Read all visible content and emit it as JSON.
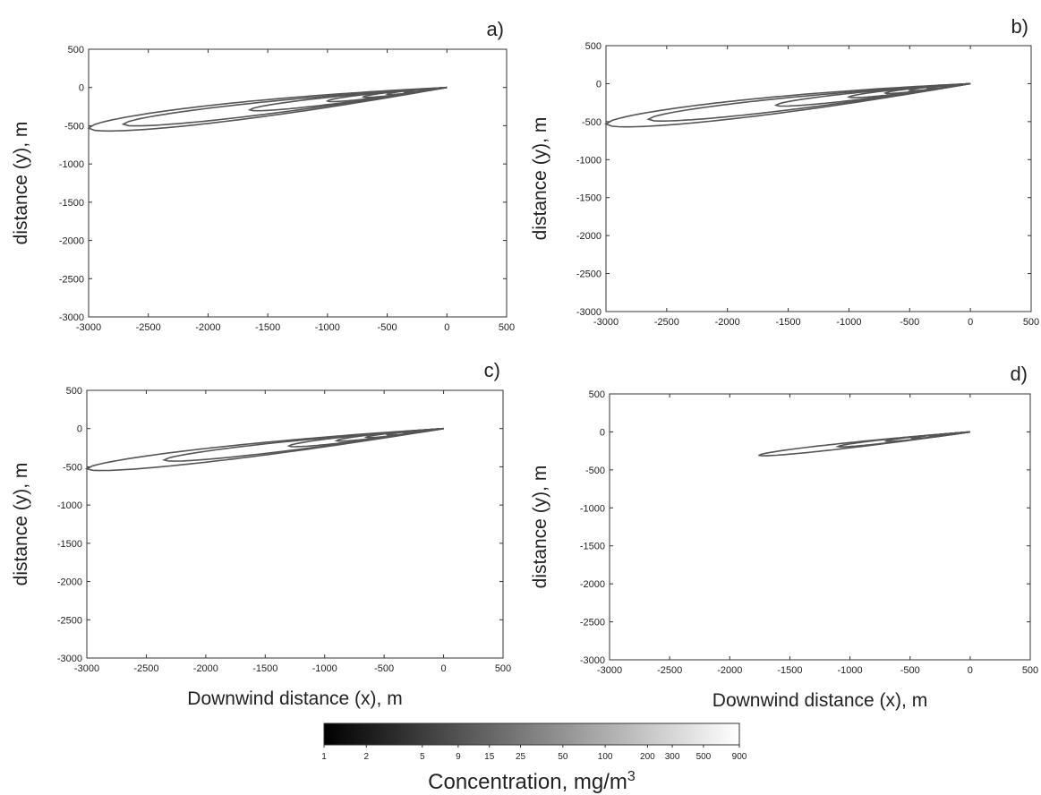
{
  "chart_data": [
    {
      "type": "contour",
      "panel_label": "a)",
      "ylabel": "distance (y), m",
      "xlabel": "",
      "xlim": [
        -3000,
        500
      ],
      "ylim": [
        -3000,
        500
      ],
      "xticks": [
        -3000,
        -2500,
        -2000,
        -1500,
        -1000,
        -500,
        0,
        500
      ],
      "yticks": [
        500,
        0,
        -500,
        -1000,
        -1500,
        -2000,
        -2500,
        -3000
      ],
      "contours": [
        {
          "tip_x": -3000,
          "axis_slope": 0.177,
          "half_width": 195
        },
        {
          "tip_x": -2710,
          "axis_slope": 0.177,
          "half_width": 140
        },
        {
          "tip_x": -1650,
          "axis_slope": 0.177,
          "half_width": 80
        },
        {
          "tip_x": -1000,
          "axis_slope": 0.177,
          "half_width": 50
        },
        {
          "tip_x": -700,
          "axis_slope": 0.177,
          "half_width": 35
        },
        {
          "tip_x": -500,
          "axis_slope": 0.177,
          "half_width": 26
        },
        {
          "tip_x": -350,
          "axis_slope": 0.177,
          "half_width": 18
        },
        {
          "tip_x": -230,
          "axis_slope": 0.177,
          "half_width": 12
        }
      ]
    },
    {
      "type": "contour",
      "panel_label": "b)",
      "ylabel": "distance (y), m",
      "xlabel": "",
      "xlim": [
        -3000,
        500
      ],
      "ylim": [
        -3000,
        500
      ],
      "xticks": [
        -3000,
        -2500,
        -2000,
        -1500,
        -1000,
        -500,
        0,
        500
      ],
      "yticks": [
        500,
        0,
        -500,
        -1000,
        -1500,
        -2000,
        -2500,
        -3000
      ],
      "contours": [
        {
          "tip_x": -3000,
          "axis_slope": 0.177,
          "half_width": 195
        },
        {
          "tip_x": -2650,
          "axis_slope": 0.177,
          "half_width": 140
        },
        {
          "tip_x": -1600,
          "axis_slope": 0.177,
          "half_width": 80
        },
        {
          "tip_x": -1000,
          "axis_slope": 0.177,
          "half_width": 50
        },
        {
          "tip_x": -700,
          "axis_slope": 0.177,
          "half_width": 35
        },
        {
          "tip_x": -500,
          "axis_slope": 0.177,
          "half_width": 26
        },
        {
          "tip_x": -350,
          "axis_slope": 0.177,
          "half_width": 18
        },
        {
          "tip_x": -230,
          "axis_slope": 0.177,
          "half_width": 12
        }
      ]
    },
    {
      "type": "contour",
      "panel_label": "c)",
      "ylabel": "distance (y), m",
      "xlabel": "Downwind distance (x), m",
      "xlim": [
        -3000,
        500
      ],
      "ylim": [
        -3000,
        500
      ],
      "xticks": [
        -3000,
        -2500,
        -2000,
        -1500,
        -1000,
        -500,
        0,
        500
      ],
      "yticks": [
        500,
        0,
        -500,
        -1000,
        -1500,
        -2000,
        -2500,
        -3000
      ],
      "contours": [
        {
          "tip_x": -3000,
          "axis_slope": 0.175,
          "half_width": 150
        },
        {
          "tip_x": -2350,
          "axis_slope": 0.175,
          "half_width": 105
        },
        {
          "tip_x": -1300,
          "axis_slope": 0.175,
          "half_width": 62
        },
        {
          "tip_x": -900,
          "axis_slope": 0.175,
          "half_width": 42
        },
        {
          "tip_x": -650,
          "axis_slope": 0.175,
          "half_width": 30
        },
        {
          "tip_x": -470,
          "axis_slope": 0.175,
          "half_width": 22
        },
        {
          "tip_x": -330,
          "axis_slope": 0.175,
          "half_width": 15
        },
        {
          "tip_x": -220,
          "axis_slope": 0.175,
          "half_width": 10
        }
      ]
    },
    {
      "type": "contour",
      "panel_label": "d)",
      "ylabel": "distance (y), m",
      "xlabel": "Downwind distance (x), m",
      "xlim": [
        -3000,
        500
      ],
      "ylim": [
        -3000,
        500
      ],
      "xticks": [
        -3000,
        -2500,
        -2000,
        -1500,
        -1000,
        -500,
        0,
        500
      ],
      "yticks": [
        500,
        0,
        -500,
        -1000,
        -1500,
        -2000,
        -2500,
        -3000
      ],
      "contours": [
        {
          "tip_x": -1760,
          "axis_slope": 0.175,
          "half_width": 60
        },
        {
          "tip_x": -1100,
          "axis_slope": 0.175,
          "half_width": 40
        },
        {
          "tip_x": -700,
          "axis_slope": 0.175,
          "half_width": 28
        },
        {
          "tip_x": -480,
          "axis_slope": 0.175,
          "half_width": 20
        },
        {
          "tip_x": -330,
          "axis_slope": 0.175,
          "half_width": 14
        },
        {
          "tip_x": -220,
          "axis_slope": 0.175,
          "half_width": 9
        }
      ]
    }
  ],
  "colorbar": {
    "title": "Concentration, mg/m",
    "title_superscript": "3",
    "scale": "log",
    "range": [
      1,
      900
    ],
    "color_low": "#000000",
    "color_high": "#ffffff",
    "ticks": [
      1,
      2,
      5,
      9,
      15,
      25,
      50,
      100,
      200,
      300,
      500,
      900
    ],
    "tick_labels": [
      "1",
      "2",
      "5",
      "9",
      "15",
      "25",
      "50",
      "100",
      "200",
      "300",
      "500",
      "900"
    ]
  },
  "line_color": "#555555"
}
